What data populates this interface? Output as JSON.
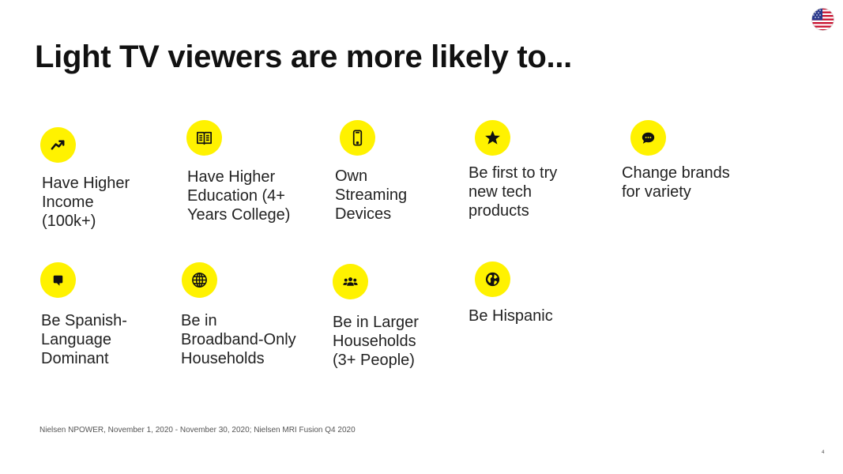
{
  "title": "Light TV viewers are more likely to...",
  "flag_icon": "us-flag-icon",
  "accent_color": "#FFF200",
  "items": [
    {
      "icon": "trending-up-icon",
      "lines": [
        "Have Higher",
        "Income",
        "(100k+)"
      ]
    },
    {
      "icon": "open-book-icon",
      "lines": [
        "Have Higher",
        "Education (4+",
        "Years College)"
      ]
    },
    {
      "icon": "smartphone-icon",
      "lines": [
        "Own",
        "Streaming",
        "Devices"
      ]
    },
    {
      "icon": "star-icon",
      "lines": [
        "Be first to try",
        "new tech",
        "products"
      ]
    },
    {
      "icon": "chat-bubble-icon",
      "lines": [
        "Change brands",
        "for variety"
      ]
    },
    {
      "icon": "speech-bubble-icon",
      "lines": [
        "Be Spanish-",
        "Language",
        "Dominant"
      ]
    },
    {
      "icon": "globe-grid-icon",
      "lines": [
        "Be in",
        "Broadband-Only",
        "Households"
      ]
    },
    {
      "icon": "people-group-icon",
      "lines": [
        "Be in Larger",
        "Households",
        "(3+ People)"
      ]
    },
    {
      "icon": "earth-icon",
      "lines": [
        "Be Hispanic"
      ]
    }
  ],
  "footnote": "Nielsen NPOWER, November 1, 2020 - November 30, 2020; Nielsen MRI Fusion Q4 2020",
  "page_number": "4"
}
